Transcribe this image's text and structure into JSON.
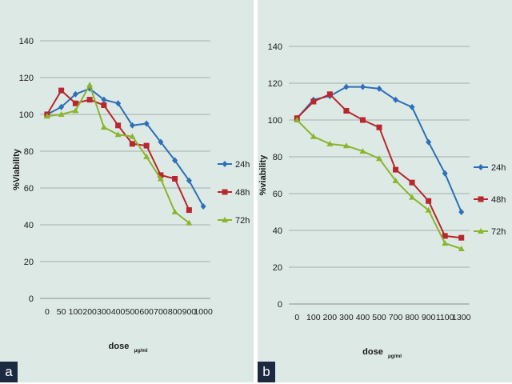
{
  "chart_data": [
    {
      "panel_label": "a",
      "type": "line",
      "xlabel": "dose",
      "xlabel_sub": "µg/ml",
      "ylabel": "%Viability",
      "ylim": [
        0,
        140
      ],
      "yticks": [
        "0",
        "20",
        "40",
        "60",
        "80",
        "100",
        "120",
        "140"
      ],
      "categories": [
        "0",
        "50",
        "100",
        "200",
        "300",
        "400",
        "500",
        "600",
        "700",
        "800",
        "900",
        "1000"
      ],
      "grid": true,
      "legend": "right",
      "series": [
        {
          "name": "24h",
          "color": "#2e6fb8",
          "marker": "diamond",
          "values": [
            100,
            104,
            111,
            114,
            108,
            106,
            94,
            95,
            85,
            75,
            64,
            50
          ]
        },
        {
          "name": "48h",
          "color": "#b8262e",
          "marker": "square",
          "values": [
            100,
            113,
            106,
            108,
            105,
            94,
            84,
            83,
            67,
            65,
            48,
            null
          ]
        },
        {
          "name": "72h",
          "color": "#8ab52c",
          "marker": "triangle",
          "values": [
            99,
            100,
            102,
            116,
            93,
            89,
            88,
            77,
            65,
            47,
            41,
            null
          ]
        }
      ]
    },
    {
      "panel_label": "b",
      "type": "line",
      "xlabel": "dose",
      "xlabel_sub": "µg/ml",
      "ylabel": "%viability",
      "ylim": [
        0,
        140
      ],
      "yticks": [
        "0",
        "20",
        "40",
        "60",
        "80",
        "100",
        "120",
        "140"
      ],
      "categories": [
        "0",
        "100",
        "200",
        "300",
        "400",
        "500",
        "700",
        "800",
        "900",
        "1100",
        "1300"
      ],
      "grid": true,
      "legend": "right",
      "series": [
        {
          "name": "24h",
          "color": "#2e6fb8",
          "marker": "diamond",
          "values": [
            101,
            111,
            113,
            118,
            118,
            117,
            111,
            107,
            88,
            71,
            50
          ]
        },
        {
          "name": "48h",
          "color": "#b8262e",
          "marker": "square",
          "values": [
            101,
            110,
            114,
            105,
            100,
            96,
            73,
            66,
            56,
            37,
            36
          ]
        },
        {
          "name": "72h",
          "color": "#8ab52c",
          "marker": "triangle",
          "values": [
            100,
            91,
            87,
            86,
            83,
            79,
            67,
            58,
            51,
            33,
            30
          ]
        }
      ]
    }
  ]
}
